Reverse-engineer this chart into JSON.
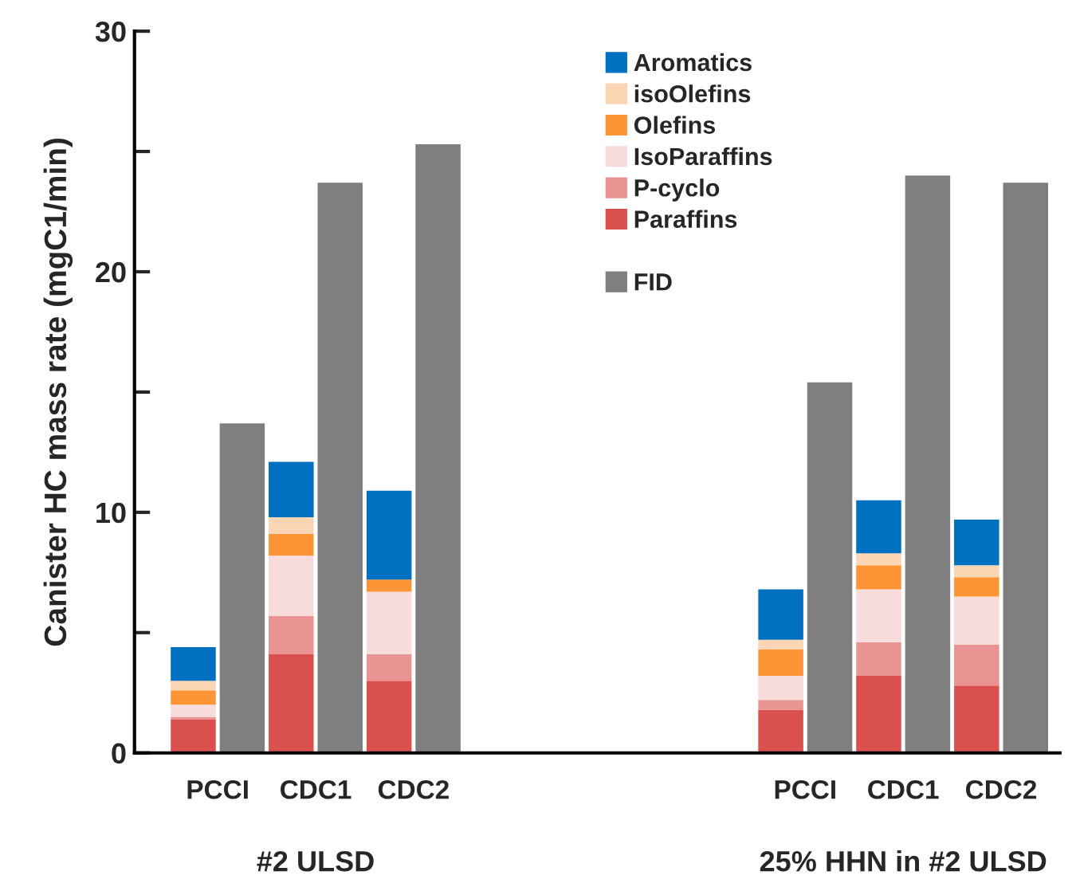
{
  "chart_data": {
    "type": "bar",
    "stacked": true,
    "ylabel": "Canister HC mass rate (mgC1/min)",
    "categories": [
      null,
      "PCCI",
      null,
      "CDC1",
      null,
      "CDC2",
      null,
      null,
      null,
      null,
      null,
      null,
      null,
      "PCCI",
      null,
      "CDC1",
      null,
      "CDC2"
    ],
    "series": [
      {
        "name": "Paraffins",
        "color": "#d9504e",
        "values": [
          1.4,
          null,
          4.1,
          null,
          3.0,
          null,
          null,
          null,
          null,
          null,
          null,
          null,
          1.8,
          null,
          3.2,
          null,
          2.8,
          null
        ]
      },
      {
        "name": "P-cyclo",
        "color": "#e99393",
        "values": [
          0.1,
          null,
          1.6,
          null,
          1.1,
          null,
          null,
          null,
          null,
          null,
          null,
          null,
          0.4,
          null,
          1.4,
          null,
          1.7,
          null
        ]
      },
      {
        "name": "IsoParaffins",
        "color": "#f8dcdc",
        "values": [
          0.5,
          null,
          2.5,
          null,
          2.6,
          null,
          null,
          null,
          null,
          null,
          null,
          null,
          1.0,
          null,
          2.2,
          null,
          2.0,
          null
        ]
      },
      {
        "name": "Olefins",
        "color": "#fd9536",
        "values": [
          0.6,
          null,
          0.9,
          null,
          0.5,
          null,
          null,
          null,
          null,
          null,
          null,
          null,
          1.1,
          null,
          1.0,
          null,
          0.8,
          null
        ]
      },
      {
        "name": "isoOlefins",
        "color": "#fcd5b5",
        "values": [
          0.4,
          null,
          0.7,
          null,
          0,
          null,
          null,
          null,
          null,
          null,
          null,
          null,
          0.4,
          null,
          0.5,
          null,
          0.5,
          null
        ]
      },
      {
        "name": "Aromatics",
        "color": "#0070c0",
        "values": [
          1.4,
          null,
          2.3,
          null,
          3.7,
          null,
          null,
          null,
          null,
          null,
          null,
          null,
          2.1,
          null,
          2.2,
          null,
          1.9,
          null
        ]
      },
      {
        "name": "FID",
        "color": "#7f7f7f",
        "values": [
          null,
          13.7,
          null,
          23.7,
          null,
          25.3,
          null,
          null,
          null,
          null,
          null,
          null,
          null,
          15.4,
          null,
          24.0,
          null,
          23.7
        ]
      }
    ],
    "ylim": [
      0,
      30
    ],
    "yticks": [
      0,
      {
        "value": 5,
        "label": null
      },
      10,
      {
        "value": 15,
        "label": null
      },
      20,
      {
        "value": 25,
        "label": null
      },
      30
    ],
    "annotations": [
      "#2 ULSD",
      "25% HHN in #2 ULSD"
    ],
    "legend": "top",
    "grid": false
  }
}
